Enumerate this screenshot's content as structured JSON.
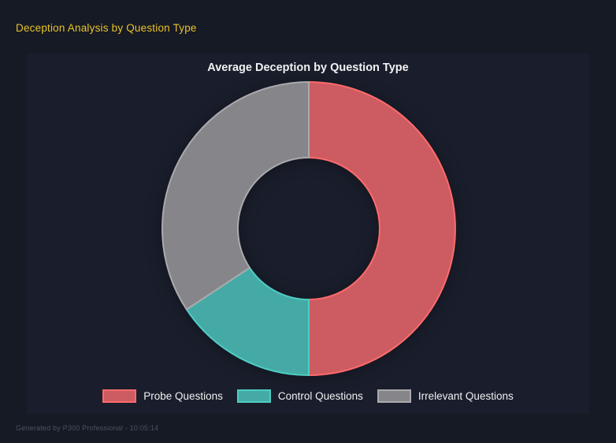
{
  "header": {
    "title": "Deception Analysis by Question Type"
  },
  "footer": {
    "text": "Generated by P300 Professional - 10:05:14"
  },
  "theme": {
    "page_background": "#161a25",
    "panel_background": "#1a1e2c",
    "header_color": "#e9c228",
    "title_color": "#f2f2f2",
    "legend_text_color": "#f0f0f0",
    "footer_color": "#4c515d"
  },
  "chart_data": {
    "type": "pie",
    "variant": "donut",
    "title": "Average Deception by Question Type",
    "categories": [
      "Probe Questions",
      "Control Questions",
      "Irrelevant Questions"
    ],
    "values": [
      50.0,
      15.7,
      34.3
    ],
    "unit": "percent-of-whole (estimated from arc angles)",
    "start_angle_deg": 0,
    "direction": "clockwise",
    "cutout_ratio": 0.48,
    "legend_position": "bottom",
    "grid": false,
    "segments": [
      {
        "label": "Probe Questions",
        "fill": "#cd5b62",
        "border": "#ff6b6b"
      },
      {
        "label": "Control Questions",
        "fill": "#45aaa5",
        "border": "#4ecdc4"
      },
      {
        "label": "Irrelevant Questions",
        "fill": "#85858a",
        "border": "#aaaaae"
      }
    ]
  }
}
